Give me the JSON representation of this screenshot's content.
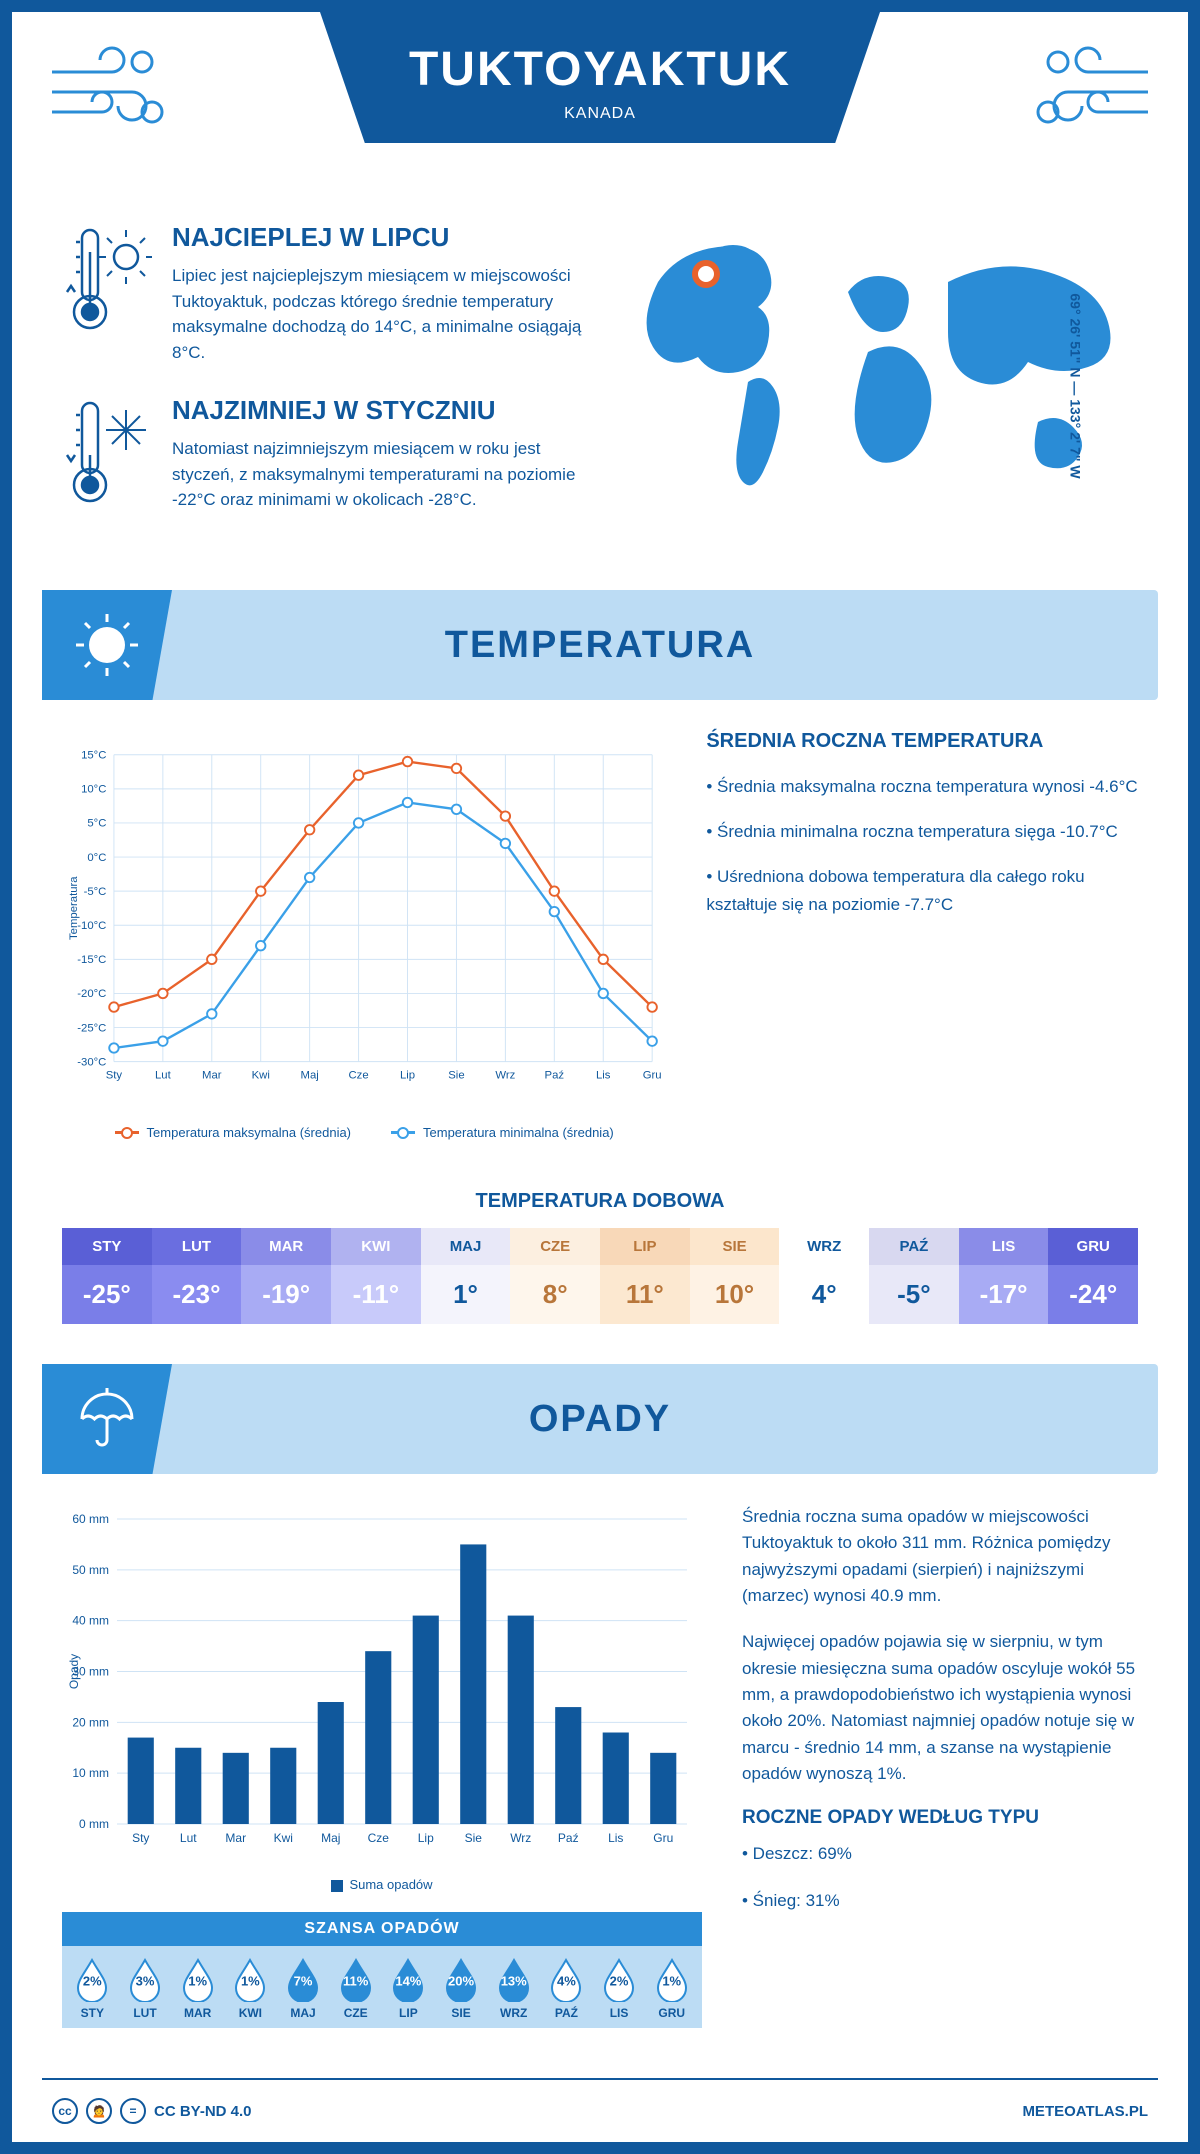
{
  "header": {
    "city": "TUKTOYAKTUK",
    "country": "KANADA"
  },
  "coords": "69° 26' 51\" N — 133° 2' 7\" W",
  "facts": {
    "warm": {
      "title": "NAJCIEPLEJ W LIPCU",
      "text": "Lipiec jest najcieplejszym miesiącem w miejscowości Tuktoyaktuk, podczas którego średnie temperatury maksymalne dochodzą do 14°C, a minimalne osiągają 8°C."
    },
    "cold": {
      "title": "NAJZIMNIEJ W STYCZNIU",
      "text": "Natomiast najzimniejszym miesiącem w roku jest styczeń, z maksymalnymi temperaturami na poziomie -22°C oraz minimami w okolicach -28°C."
    }
  },
  "temperature": {
    "section_title": "TEMPERATURA",
    "chart": {
      "type": "line",
      "months": [
        "Sty",
        "Lut",
        "Mar",
        "Kwi",
        "Maj",
        "Cze",
        "Lip",
        "Sie",
        "Wrz",
        "Paź",
        "Lis",
        "Gru"
      ],
      "max_series": {
        "values": [
          -22,
          -20,
          -15,
          -5,
          4,
          12,
          14,
          13,
          6,
          -5,
          -15,
          -22
        ],
        "color": "#e8622c"
      },
      "min_series": {
        "values": [
          -28,
          -27,
          -23,
          -13,
          -3,
          5,
          8,
          7,
          2,
          -8,
          -20,
          -27
        ],
        "color": "#3aa0e8"
      },
      "ylim": [
        -30,
        15
      ],
      "ytick_step": 5,
      "ylabel": "Temperatura",
      "grid_color": "#cfe3f5",
      "bg": "#ffffff",
      "line_width": 2.5,
      "marker_size": 5
    },
    "legend": {
      "max": "Temperatura maksymalna (średnia)",
      "min": "Temperatura minimalna (średnia)"
    },
    "info": {
      "title": "ŚREDNIA ROCZNA TEMPERATURA",
      "b1": "• Średnia maksymalna roczna temperatura wynosi -4.6°C",
      "b2": "• Średnia minimalna roczna temperatura sięga -10.7°C",
      "b3": "• Uśredniona dobowa temperatura dla całego roku kształtuje się na poziomie -7.7°C"
    },
    "daily": {
      "title": "TEMPERATURA DOBOWA",
      "months": [
        "STY",
        "LUT",
        "MAR",
        "KWI",
        "MAJ",
        "CZE",
        "LIP",
        "SIE",
        "WRZ",
        "PAŹ",
        "LIS",
        "GRU"
      ],
      "values": [
        "-25°",
        "-23°",
        "-19°",
        "-11°",
        "1°",
        "8°",
        "11°",
        "10°",
        "4°",
        "-5°",
        "-17°",
        "-24°"
      ],
      "head_colors": [
        "#5a5fd6",
        "#6a6ee0",
        "#8a8ce8",
        "#b0b2f0",
        "#e8e8f8",
        "#fcefe0",
        "#f8d8b8",
        "#fce6cc",
        "#ffffff",
        "#d8d8f0",
        "#8a8ce8",
        "#5a5fd6"
      ],
      "val_colors": [
        "#7a7ee8",
        "#8a8cf0",
        "#a8abf4",
        "#c8cafa",
        "#f4f4fc",
        "#fef6ec",
        "#fce8d0",
        "#fef2e4",
        "#ffffff",
        "#e8e8f8",
        "#a8abf4",
        "#7a7ee8"
      ],
      "text_colors": [
        "#ffffff",
        "#ffffff",
        "#ffffff",
        "#ffffff",
        "#10589c",
        "#b8763a",
        "#b8763a",
        "#b8763a",
        "#10589c",
        "#10589c",
        "#ffffff",
        "#ffffff"
      ]
    }
  },
  "precip": {
    "section_title": "OPADY",
    "chart": {
      "type": "bar",
      "months": [
        "Sty",
        "Lut",
        "Mar",
        "Kwi",
        "Maj",
        "Cze",
        "Lip",
        "Sie",
        "Wrz",
        "Paź",
        "Lis",
        "Gru"
      ],
      "values": [
        17,
        15,
        14,
        15,
        24,
        34,
        41,
        55,
        41,
        23,
        18,
        14
      ],
      "ylim": [
        0,
        60
      ],
      "ytick_step": 10,
      "ylabel": "Opady",
      "bar_color": "#10589c",
      "grid_color": "#cfe3f5",
      "bar_width": 0.55
    },
    "legend": "Suma opadów",
    "info": {
      "p1": "Średnia roczna suma opadów w miejscowości Tuktoyaktuk to około 311 mm. Różnica pomiędzy najwyższymi opadami (sierpień) i najniższymi (marzec) wynosi 40.9 mm.",
      "p2": "Najwięcej opadów pojawia się w sierpniu, w tym okresie miesięczna suma opadów oscyluje wokół 55 mm, a prawdopodobieństwo ich wystąpienia wynosi około 20%. Natomiast najmniej opadów notuje się w marcu - średnio 14 mm, a szanse na wystąpienie opadów wynoszą 1%.",
      "type_title": "ROCZNE OPADY WEDŁUG TYPU",
      "rain": "• Deszcz: 69%",
      "snow": "• Śnieg: 31%"
    },
    "chance": {
      "title": "SZANSA OPADÓW",
      "months": [
        "STY",
        "LUT",
        "MAR",
        "KWI",
        "MAJ",
        "CZE",
        "LIP",
        "SIE",
        "WRZ",
        "PAŹ",
        "LIS",
        "GRU"
      ],
      "values": [
        "2%",
        "3%",
        "1%",
        "1%",
        "7%",
        "11%",
        "14%",
        "20%",
        "13%",
        "4%",
        "2%",
        "1%"
      ],
      "filled": [
        false,
        false,
        false,
        false,
        true,
        true,
        true,
        true,
        true,
        false,
        false,
        false
      ]
    }
  },
  "footer": {
    "license": "CC BY-ND 4.0",
    "site": "METEOATLAS.PL"
  },
  "colors": {
    "primary": "#10589c",
    "accent": "#2a8cd6",
    "light": "#bcdcf4"
  }
}
